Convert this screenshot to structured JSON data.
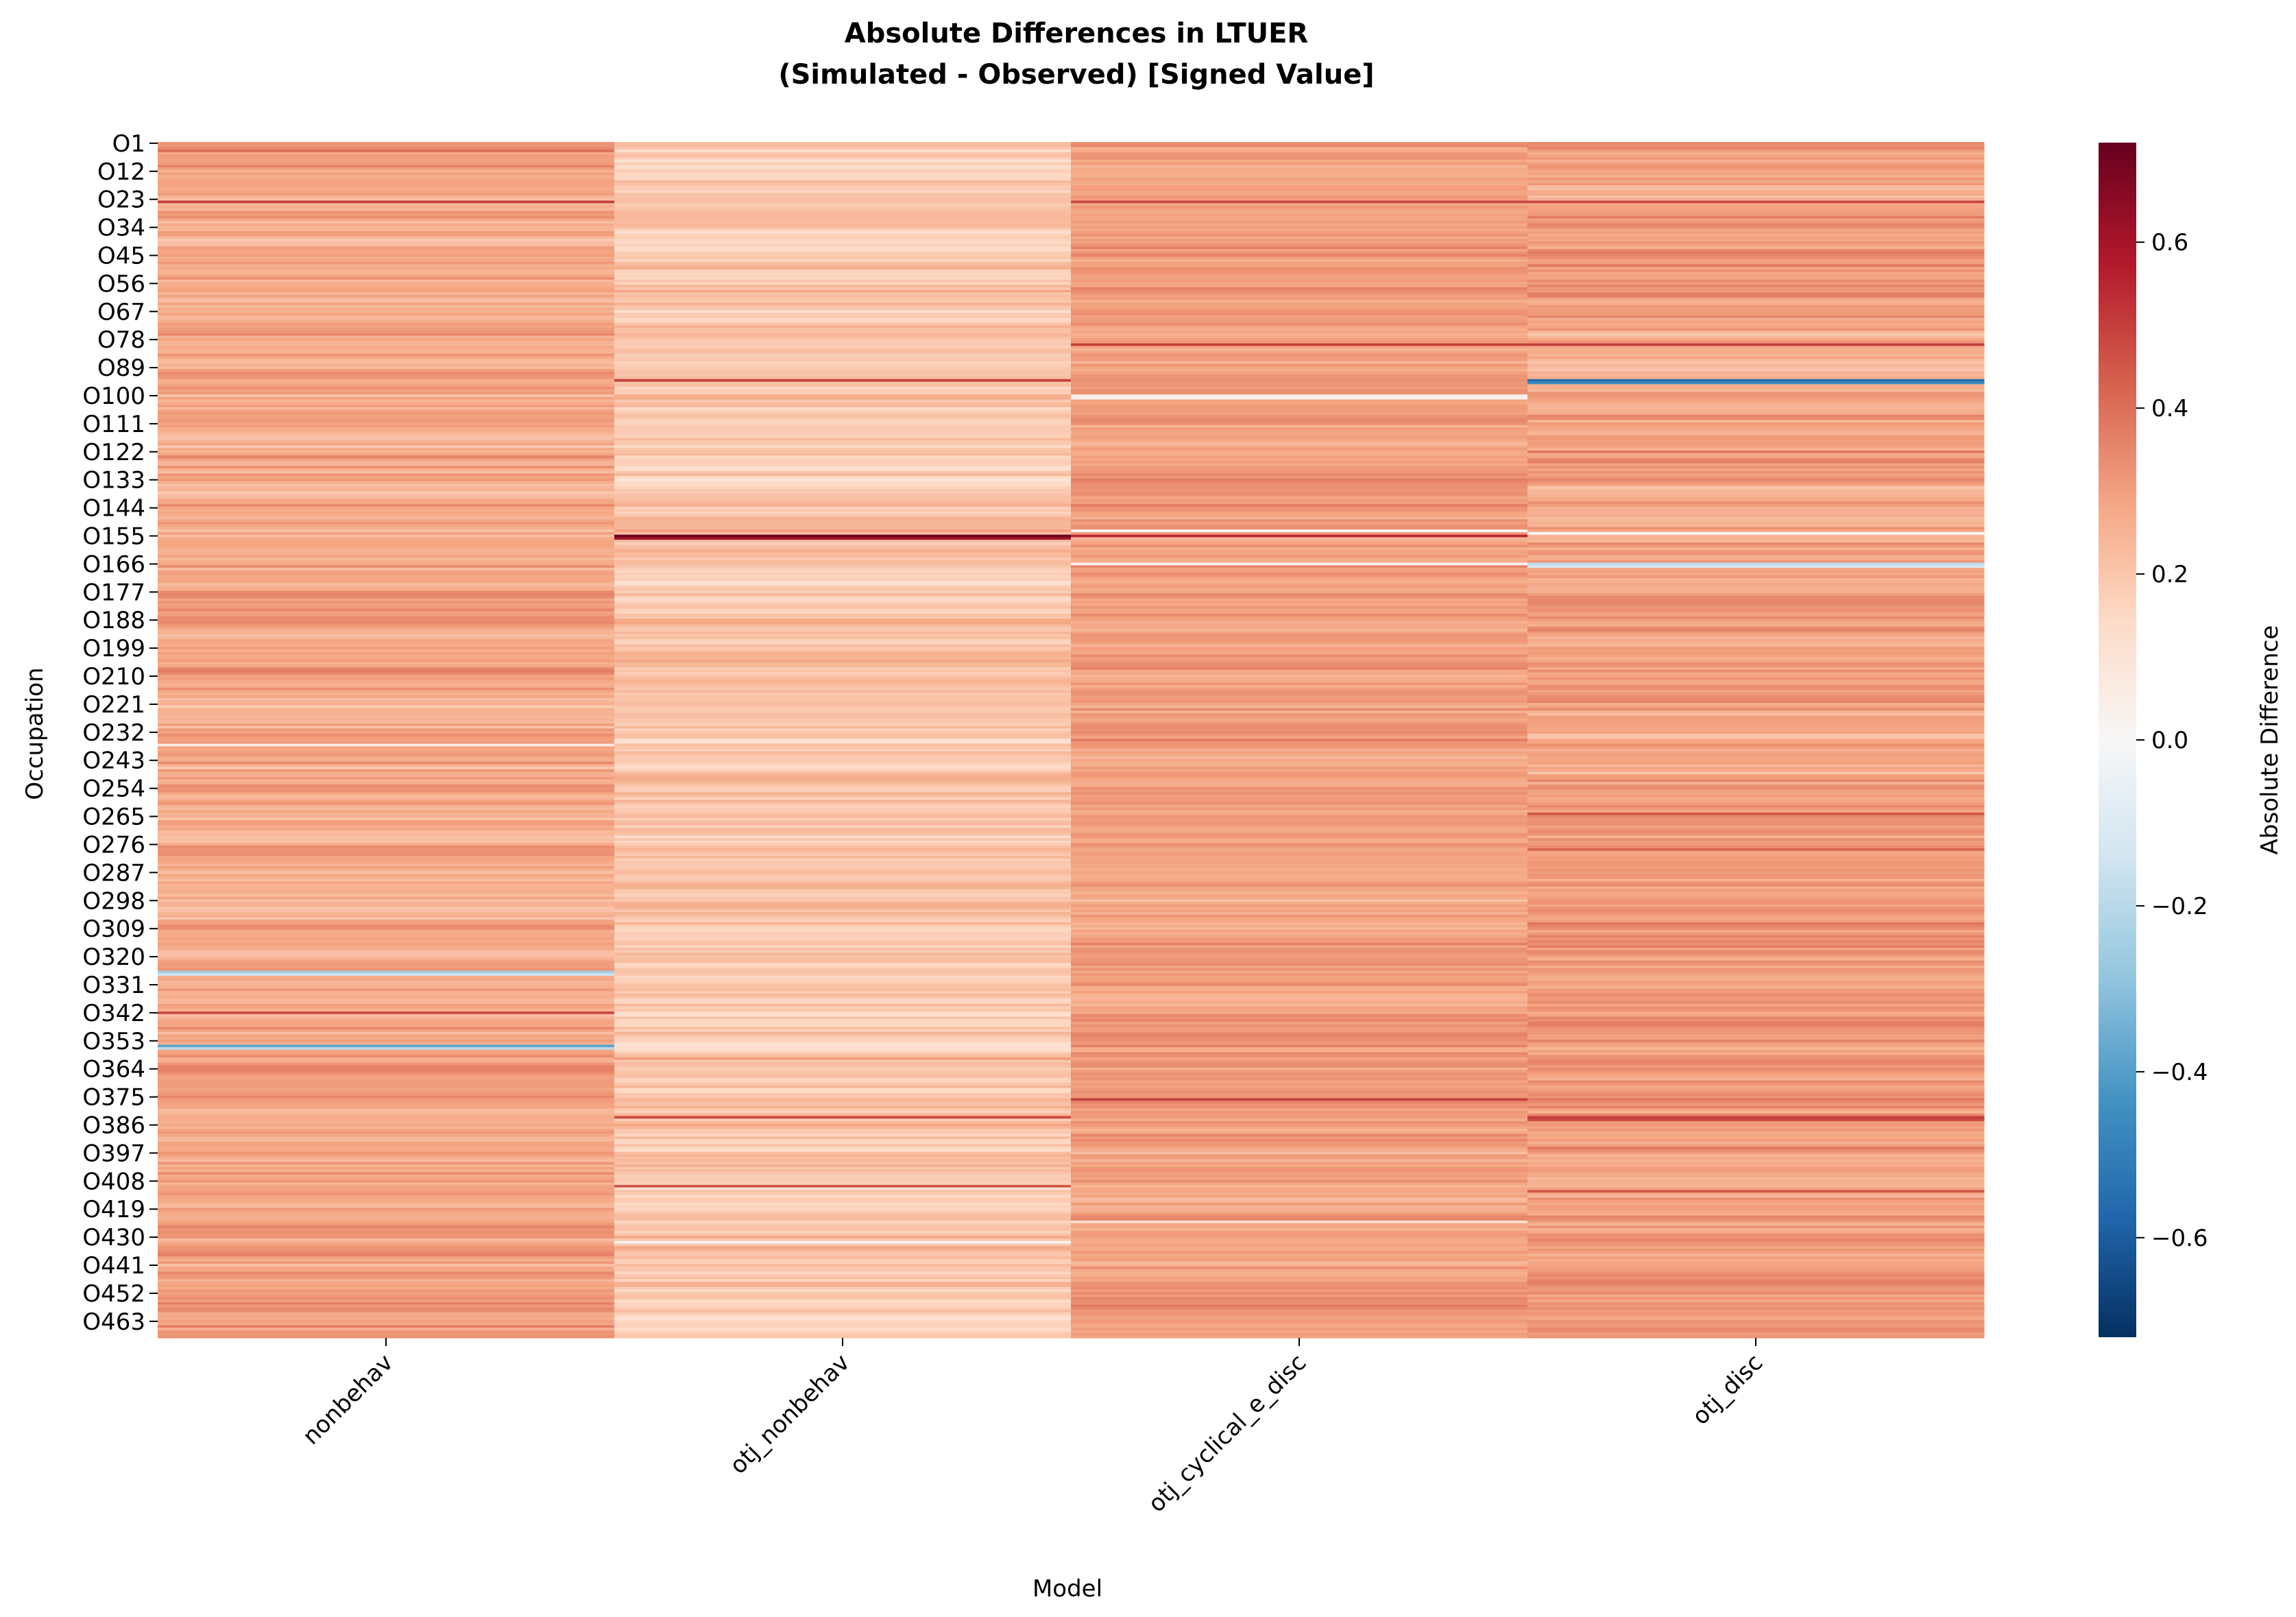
{
  "chart_data": {
    "type": "heatmap",
    "title_line1": "Absolute Differences in LTUER",
    "title_line2": "(Simulated - Observed) [Signed Value]",
    "xlabel": "Model",
    "ylabel": "Occupation",
    "colorbar_label": "Absolute Difference",
    "colormap": "RdBu_r",
    "vmin": -0.72,
    "vmax": 0.72,
    "colorbar_ticks": [
      0.6,
      0.4,
      0.2,
      0.0,
      -0.2,
      -0.4,
      -0.6
    ],
    "colorbar_tick_labels": [
      "0.6",
      "0.4",
      "0.2",
      "0.0",
      "−0.2",
      "−0.4",
      "−0.6"
    ],
    "row_count": 469,
    "columns": [
      "nonbehav",
      "otj_nonbehav",
      "otj_cyclical_e_disc",
      "otj_disc"
    ],
    "row_tick_labels": [
      "O1",
      "O12",
      "O23",
      "O34",
      "O45",
      "O56",
      "O67",
      "O78",
      "O89",
      "O100",
      "O111",
      "O122",
      "O133",
      "O144",
      "O155",
      "O166",
      "O177",
      "O188",
      "O199",
      "O210",
      "O221",
      "O232",
      "O243",
      "O254",
      "O265",
      "O276",
      "O287",
      "O298",
      "O309",
      "O320",
      "O331",
      "O342",
      "O353",
      "O364",
      "O375",
      "O386",
      "O397",
      "O408",
      "O419",
      "O430",
      "O441",
      "O452",
      "O463"
    ],
    "column_profiles": {
      "nonbehav": {
        "mean": 0.28,
        "spread": 0.09
      },
      "otj_nonbehav": {
        "mean": 0.2,
        "spread": 0.09
      },
      "otj_cyclical_e_disc": {
        "mean": 0.3,
        "spread": 0.08
      },
      "otj_disc": {
        "mean": 0.3,
        "spread": 0.09
      }
    },
    "notable_cells": [
      {
        "row": "O4",
        "column": "nonbehav",
        "value": 0.4
      },
      {
        "row": "O24",
        "column": "nonbehav",
        "value": 0.5
      },
      {
        "row": "O24",
        "column": "otj_cyclical_e_disc",
        "value": 0.48
      },
      {
        "row": "O24",
        "column": "otj_disc",
        "value": 0.48
      },
      {
        "row": "O94",
        "column": "otj_disc",
        "value": -0.55
      },
      {
        "row": "O95",
        "column": "otj_disc",
        "value": -0.45
      },
      {
        "row": "O94",
        "column": "otj_nonbehav",
        "value": 0.5
      },
      {
        "row": "O100",
        "column": "otj_cyclical_e_disc",
        "value": 0.05
      },
      {
        "row": "O101",
        "column": "otj_cyclical_e_disc",
        "value": 0.03
      },
      {
        "row": "O155",
        "column": "otj_nonbehav",
        "value": 0.72
      },
      {
        "row": "O156",
        "column": "otj_nonbehav",
        "value": 0.6
      },
      {
        "row": "O155",
        "column": "otj_cyclical_e_disc",
        "value": 0.55
      },
      {
        "row": "O153",
        "column": "otj_cyclical_e_disc",
        "value": 0.0
      },
      {
        "row": "O154",
        "column": "otj_disc",
        "value": 0.0
      },
      {
        "row": "O166",
        "column": "otj_disc",
        "value": -0.18
      },
      {
        "row": "O167",
        "column": "otj_disc",
        "value": -0.12
      },
      {
        "row": "O166",
        "column": "otj_cyclical_e_disc",
        "value": 0.02
      },
      {
        "row": "O237",
        "column": "nonbehav",
        "value": 0.05
      },
      {
        "row": "O326",
        "column": "nonbehav",
        "value": -0.25
      },
      {
        "row": "O327",
        "column": "nonbehav",
        "value": -0.15
      },
      {
        "row": "O355",
        "column": "nonbehav",
        "value": -0.38
      },
      {
        "row": "O356",
        "column": "nonbehav",
        "value": -0.2
      },
      {
        "row": "O342",
        "column": "nonbehav",
        "value": 0.48
      },
      {
        "row": "O383",
        "column": "otj_disc",
        "value": 0.5
      },
      {
        "row": "O384",
        "column": "otj_disc",
        "value": 0.48
      },
      {
        "row": "O383",
        "column": "otj_nonbehav",
        "value": 0.48
      },
      {
        "row": "O376",
        "column": "otj_cyclical_e_disc",
        "value": 0.5
      },
      {
        "row": "O410",
        "column": "otj_nonbehav",
        "value": 0.45
      },
      {
        "row": "O412",
        "column": "otj_disc",
        "value": 0.45
      },
      {
        "row": "O424",
        "column": "otj_cyclical_e_disc",
        "value": 0.12
      },
      {
        "row": "O432",
        "column": "otj_nonbehav",
        "value": 0.02
      },
      {
        "row": "O80",
        "column": "otj_cyclical_e_disc",
        "value": 0.5
      },
      {
        "row": "O80",
        "column": "otj_disc",
        "value": 0.5
      },
      {
        "row": "O264",
        "column": "otj_disc",
        "value": 0.45
      },
      {
        "row": "O278",
        "column": "otj_disc",
        "value": 0.42
      }
    ]
  }
}
